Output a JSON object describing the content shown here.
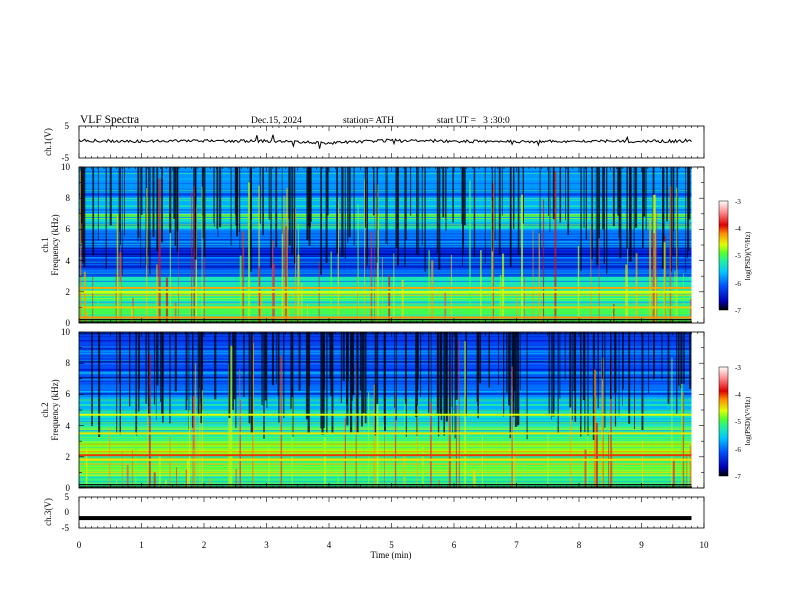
{
  "header": {
    "title": "VLF Spectra",
    "date": "Dec.15, 2024",
    "station": "station= ATH",
    "start_ut": "start UT =   3 :30:0"
  },
  "panels": {
    "ch1v": {
      "label": "ch.1(V)",
      "ticks": [
        "5",
        "-5"
      ]
    },
    "ch1": {
      "label_a": "ch.1",
      "label_b": "Frequency (kHz)",
      "ticks": [
        "0",
        "2",
        "4",
        "6",
        "8",
        "10"
      ]
    },
    "ch2": {
      "label_a": "ch.2",
      "label_b": "Frequency (kHz)",
      "ticks": [
        "0",
        "2",
        "4",
        "6",
        "8",
        "10"
      ]
    },
    "ch3v": {
      "label": "ch.3(V)",
      "ticks": [
        "5",
        "0",
        "-5"
      ]
    }
  },
  "xaxis": {
    "label": "Time (min)",
    "ticks": [
      "0",
      "1",
      "2",
      "3",
      "4",
      "5",
      "6",
      "7",
      "8",
      "9",
      "10"
    ]
  },
  "colorbar": {
    "label": "log(PSD)(V²/Hz)",
    "ticks": [
      "-3",
      "-4",
      "-5",
      "-6",
      "-7"
    ],
    "colors": [
      "#000000",
      "#0000b4",
      "#0050ff",
      "#00c8ff",
      "#20f0a0",
      "#50ff30",
      "#e0ff00",
      "#ff9000",
      "#e00000",
      "#ff9090",
      "#ffffff"
    ]
  },
  "chart_data": [
    {
      "type": "line",
      "title": "ch.1(V)",
      "xlabel": "Time (min)",
      "ylabel": "ch.1(V)",
      "xlim": [
        0,
        10
      ],
      "ylim": [
        -5,
        5
      ],
      "data_extent_min": [
        0,
        9.8
      ],
      "series": [
        {
          "x": [
            0,
            1,
            2,
            3,
            4,
            5,
            6,
            7,
            8,
            9,
            9.8
          ],
          "values": [
            0.5,
            0.2,
            0.4,
            0.3,
            -0.3,
            0.5,
            0.2,
            0.1,
            0.3,
            0.2,
            0.3
          ]
        }
      ]
    },
    {
      "type": "heatmap",
      "title": "ch.1 Frequency (kHz)",
      "xlabel": "Time (min)",
      "ylabel": "ch.1 Frequency (kHz)",
      "xlim": [
        0,
        10
      ],
      "ylim": [
        0,
        10
      ],
      "colorbar": {
        "label": "log(PSD)(V²/Hz)",
        "range": [
          -7,
          -3
        ]
      },
      "rows_freq_khz": [
        0.5,
        1.5,
        2.5,
        3.5,
        4.5,
        5.5,
        6.5,
        7.5,
        8.5,
        9.5
      ],
      "row_log_psd": [
        -5.0,
        -5.1,
        -5.3,
        -6.0,
        -6.3,
        -5.9,
        -5.4,
        -5.7,
        -5.8,
        -5.8
      ],
      "bands": [
        {
          "freq_khz": 0.35,
          "log_psd": -4.2
        },
        {
          "freq_khz": 1.0,
          "log_psd": -4.4
        },
        {
          "freq_khz": 2.25,
          "log_psd": -4.3
        },
        {
          "freq_khz": 2.0,
          "log_psd": -4.6
        }
      ]
    },
    {
      "type": "heatmap",
      "title": "ch.2 Frequency (kHz)",
      "xlabel": "Time (min)",
      "ylabel": "ch.2 Frequency (kHz)",
      "xlim": [
        0,
        10
      ],
      "ylim": [
        0,
        10
      ],
      "colorbar": {
        "label": "log(PSD)(V²/Hz)",
        "range": [
          -7,
          -3
        ]
      },
      "rows_freq_khz": [
        0.5,
        1.5,
        2.5,
        3.5,
        4.5,
        5.5,
        6.5,
        7.5,
        8.5,
        9.5
      ],
      "row_log_psd": [
        -5.1,
        -5.0,
        -4.8,
        -5.2,
        -5.4,
        -5.7,
        -6.0,
        -6.2,
        -6.2,
        -6.2
      ],
      "bands": [
        {
          "freq_khz": 2.1,
          "log_psd": -4.0
        },
        {
          "freq_khz": 3.5,
          "log_psd": -4.5
        },
        {
          "freq_khz": 4.7,
          "log_psd": -4.6
        },
        {
          "freq_khz": 1.8,
          "log_psd": -4.5
        }
      ]
    },
    {
      "type": "line",
      "title": "ch.3(V)",
      "xlabel": "Time (min)",
      "ylabel": "ch.3(V)",
      "xlim": [
        0,
        10
      ],
      "ylim": [
        -5,
        5
      ],
      "data_extent_min": [
        0,
        9.8
      ],
      "series": [
        {
          "x": [
            0,
            9.8
          ],
          "values": [
            -1.8,
            -1.8
          ]
        }
      ]
    }
  ]
}
